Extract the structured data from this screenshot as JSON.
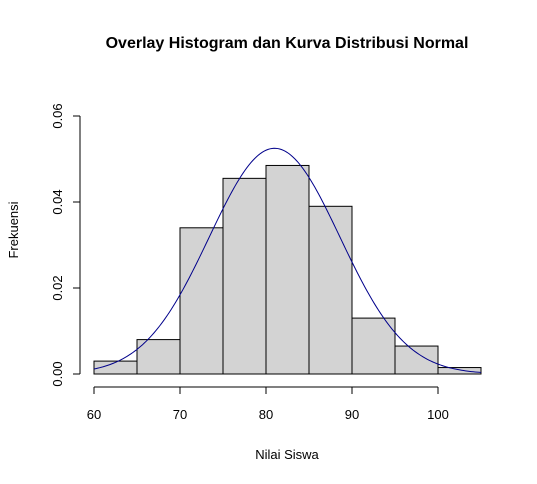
{
  "chart_data": {
    "type": "bar",
    "title": "Overlay Histogram dan Kurva Distribusi Normal",
    "xlabel": "Nilai Siswa",
    "ylabel": "Frekuensi",
    "xlim": [
      60,
      105
    ],
    "ylim": [
      0,
      0.06
    ],
    "x_ticks": [
      "60",
      "70",
      "80",
      "90",
      "100"
    ],
    "y_ticks": [
      "0.00",
      "0.02",
      "0.04",
      "0.06"
    ],
    "grid": false,
    "bins": [
      {
        "start": 60,
        "end": 65,
        "density": 0.003
      },
      {
        "start": 65,
        "end": 70,
        "density": 0.008
      },
      {
        "start": 70,
        "end": 75,
        "density": 0.034
      },
      {
        "start": 75,
        "end": 80,
        "density": 0.0455
      },
      {
        "start": 80,
        "end": 85,
        "density": 0.0485
      },
      {
        "start": 85,
        "end": 90,
        "density": 0.039
      },
      {
        "start": 90,
        "end": 95,
        "density": 0.013
      },
      {
        "start": 95,
        "end": 100,
        "density": 0.0065
      },
      {
        "start": 100,
        "end": 105,
        "density": 0.0015
      }
    ],
    "bar_color": "#d3d3d3",
    "curve": {
      "type": "normal",
      "mean": 81,
      "sd": 7.6,
      "range": [
        60,
        105
      ],
      "color": "#00008b"
    }
  }
}
